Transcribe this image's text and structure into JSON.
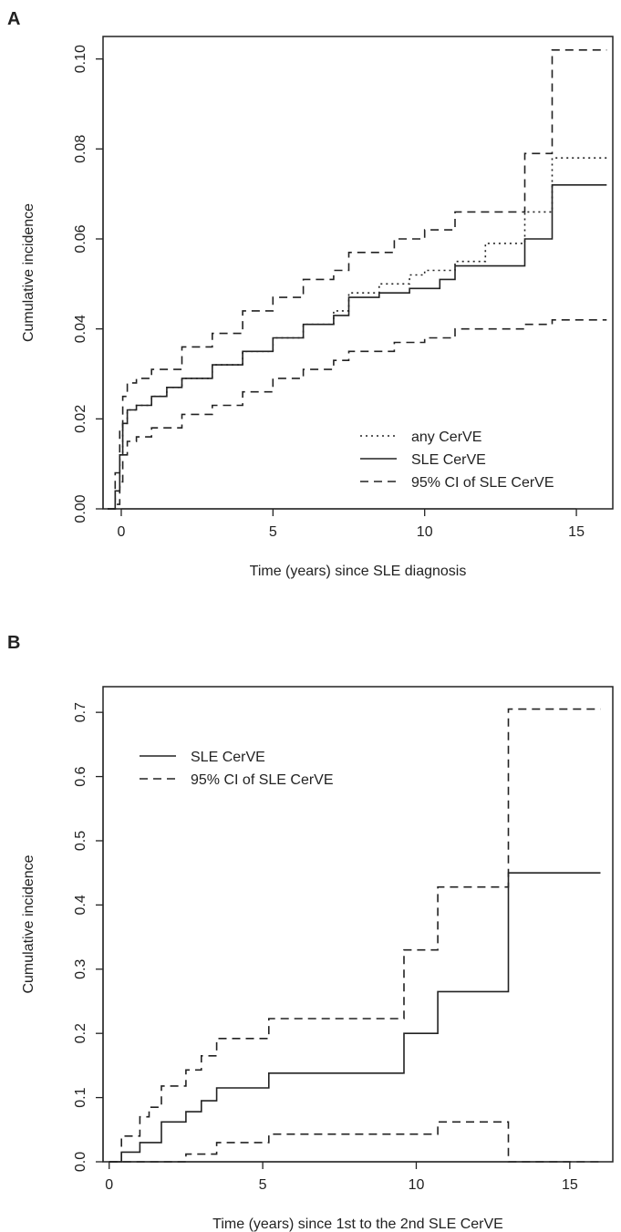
{
  "chart_data": [
    {
      "panel": "A",
      "type": "line",
      "step": true,
      "xlabel": "Time (years) since SLE diagnosis",
      "ylabel": "Cumulative incidence",
      "xlim": [
        -0.6,
        16.2
      ],
      "ylim": [
        0,
        0.105
      ],
      "xticks": [
        0,
        5,
        10,
        15
      ],
      "yticks": [
        0.0,
        0.02,
        0.04,
        0.06,
        0.08,
        0.1
      ],
      "ytick_labels": [
        "0.00",
        "0.02",
        "0.04",
        "0.06",
        "0.08",
        "0.10"
      ],
      "legend_position": "bottom-right",
      "grid": false,
      "series": [
        {
          "name": "any CerVE",
          "linestyle": "dotted",
          "x": [
            -0.45,
            -0.2,
            -0.05,
            0.05,
            0.2,
            0.5,
            1.0,
            1.5,
            2.0,
            3.0,
            4.0,
            5.0,
            6.0,
            7.0,
            7.5,
            8.5,
            9.5,
            10.0,
            11.0,
            12.0,
            13.3,
            14.2,
            16.0
          ],
          "y": [
            0.0,
            0.004,
            0.012,
            0.019,
            0.022,
            0.023,
            0.025,
            0.027,
            0.029,
            0.032,
            0.035,
            0.038,
            0.041,
            0.044,
            0.048,
            0.05,
            0.052,
            0.053,
            0.055,
            0.059,
            0.066,
            0.078,
            0.078
          ]
        },
        {
          "name": "SLE CerVE",
          "linestyle": "solid",
          "x": [
            -0.45,
            -0.2,
            -0.05,
            0.05,
            0.2,
            0.5,
            1.0,
            1.5,
            2.0,
            3.0,
            4.0,
            5.0,
            6.0,
            7.0,
            7.5,
            8.5,
            9.5,
            10.5,
            11.0,
            13.3,
            14.2,
            16.0
          ],
          "y": [
            0.0,
            0.004,
            0.012,
            0.019,
            0.022,
            0.023,
            0.025,
            0.027,
            0.029,
            0.032,
            0.035,
            0.038,
            0.041,
            0.043,
            0.047,
            0.048,
            0.049,
            0.051,
            0.054,
            0.06,
            0.072,
            0.072
          ]
        },
        {
          "name": "95% CI of SLE CerVE",
          "linestyle": "dashed",
          "x": [
            -0.45,
            -0.2,
            -0.05,
            0.05,
            0.2,
            0.5,
            1.0,
            2.0,
            3.0,
            4.0,
            5.0,
            6.0,
            7.0,
            7.5,
            9.0,
            10.0,
            11.0,
            13.3,
            14.2,
            16.0
          ],
          "y": [
            0.0,
            0.008,
            0.018,
            0.025,
            0.028,
            0.029,
            0.031,
            0.036,
            0.039,
            0.044,
            0.047,
            0.051,
            0.053,
            0.057,
            0.06,
            0.062,
            0.066,
            0.079,
            0.102,
            0.102
          ]
        },
        {
          "name": "",
          "linestyle": "dashed",
          "x": [
            -0.45,
            -0.2,
            -0.05,
            0.05,
            0.2,
            0.5,
            1.0,
            2.0,
            3.0,
            4.0,
            5.0,
            6.0,
            7.0,
            7.5,
            9.0,
            10.0,
            11.0,
            13.3,
            14.2,
            16.0
          ],
          "y": [
            0.0,
            0.001,
            0.006,
            0.012,
            0.015,
            0.016,
            0.018,
            0.021,
            0.023,
            0.026,
            0.029,
            0.031,
            0.033,
            0.035,
            0.037,
            0.038,
            0.04,
            0.041,
            0.042,
            0.042
          ]
        }
      ]
    },
    {
      "panel": "B",
      "type": "line",
      "step": true,
      "xlabel": "Time (years) since 1st to the 2nd SLE CerVE",
      "ylabel": "Cumulative incidence",
      "xlim": [
        -0.2,
        16.4
      ],
      "ylim": [
        0,
        0.74
      ],
      "xticks": [
        0,
        5,
        10,
        15
      ],
      "yticks": [
        0.0,
        0.1,
        0.2,
        0.3,
        0.4,
        0.5,
        0.6,
        0.7
      ],
      "ytick_labels": [
        "0.0",
        "0.1",
        "0.2",
        "0.3",
        "0.4",
        "0.5",
        "0.6",
        "0.7"
      ],
      "legend_position": "top-left",
      "grid": false,
      "series": [
        {
          "name": "SLE CerVE",
          "linestyle": "solid",
          "x": [
            0.0,
            0.4,
            1.0,
            1.7,
            2.5,
            3.0,
            3.5,
            5.2,
            9.6,
            10.7,
            13.0,
            16.0
          ],
          "y": [
            0.0,
            0.015,
            0.03,
            0.062,
            0.078,
            0.095,
            0.115,
            0.138,
            0.2,
            0.265,
            0.45,
            0.45
          ]
        },
        {
          "name": "95% CI of SLE CerVE",
          "linestyle": "dashed",
          "x": [
            0.0,
            0.4,
            1.0,
            1.3,
            1.7,
            2.5,
            3.0,
            3.5,
            5.2,
            9.6,
            10.7,
            13.0,
            16.0
          ],
          "y": [
            0.0,
            0.04,
            0.07,
            0.085,
            0.118,
            0.143,
            0.165,
            0.192,
            0.223,
            0.33,
            0.428,
            0.705,
            0.705
          ]
        },
        {
          "name": "",
          "linestyle": "dashed",
          "x": [
            0.0,
            1.7,
            2.5,
            3.5,
            5.2,
            9.6,
            10.7,
            13.0,
            16.0
          ],
          "y": [
            0.0,
            0.0,
            0.012,
            0.03,
            0.043,
            0.043,
            0.062,
            0.0,
            0.0
          ]
        }
      ]
    }
  ]
}
